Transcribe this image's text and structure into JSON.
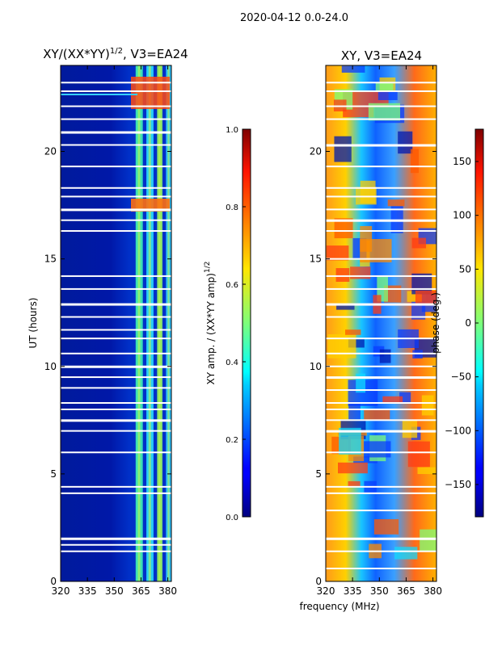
{
  "figure_title": "2020-04-12 0.0-24.0",
  "chart_data": [
    {
      "type": "heatmap",
      "title_main": "XY/(XX*YY)",
      "title_sup": "1/2",
      "title_suffix": ", V3=EA24",
      "xlabel": "",
      "ylabel": "UT (hours)",
      "x_range": [
        320,
        382
      ],
      "y_range": [
        0,
        24
      ],
      "x_ticks": [
        320,
        335,
        350,
        365,
        380
      ],
      "y_ticks": [
        0,
        5,
        10,
        15,
        20
      ],
      "colorbar": {
        "label_main": "XY amp. / (XX*YY amp)",
        "label_sup": "1/2",
        "range": [
          0.0,
          1.0
        ],
        "ticks": [
          "0.0",
          "0.2",
          "0.4",
          "0.6",
          "0.8",
          "1.0"
        ],
        "colormap": "jet"
      },
      "bright_channels_mhz": [
        [
          362,
          366
        ],
        [
          368,
          372
        ],
        [
          374,
          377
        ],
        [
          379,
          382
        ]
      ],
      "gap_hours": [
        1.4,
        1.7,
        2.0,
        4.1,
        4.4,
        6.0,
        7.0,
        7.5,
        8.0,
        8.3,
        9.0,
        9.5,
        10.0,
        10.6,
        11.3,
        11.7,
        12.3,
        12.9,
        13.6,
        14.2,
        16.3,
        16.8,
        17.3,
        17.9,
        18.3,
        19.3,
        20.3,
        20.9,
        21.5,
        22.1,
        22.8,
        23.2
      ]
    },
    {
      "type": "heatmap",
      "title_main": "XY, V3=EA24",
      "xlabel": "frequency (MHz)",
      "ylabel": "",
      "x_range": [
        320,
        382
      ],
      "y_range": [
        0,
        24
      ],
      "x_ticks": [
        320,
        335,
        350,
        365,
        380
      ],
      "y_ticks": [
        0,
        5,
        10,
        15,
        20
      ],
      "colorbar": {
        "label_main": "phase (deg.)",
        "range": [
          -180,
          180
        ],
        "ticks": [
          "−150",
          "−100",
          "−50",
          "0",
          "50",
          "100",
          "150"
        ],
        "tick_values": [
          -150,
          -100,
          -50,
          0,
          50,
          100,
          150
        ],
        "colormap": "jet"
      },
      "gap_hours": [
        0.6,
        1.4,
        2.0,
        3.3,
        4.1,
        4.4,
        6.0,
        7.0,
        7.5,
        8.0,
        8.3,
        8.9,
        9.5,
        10.0,
        10.6,
        11.3,
        12.3,
        12.9,
        13.6,
        14.2,
        15.0,
        16.3,
        16.8,
        17.3,
        17.9,
        18.3,
        19.3,
        20.3,
        21.5,
        22.1,
        22.8,
        23.2
      ]
    }
  ]
}
